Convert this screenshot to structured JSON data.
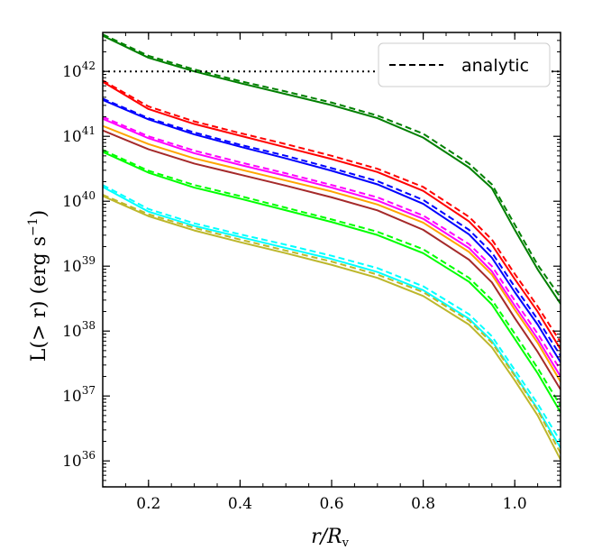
{
  "chart_data": {
    "type": "line",
    "title": "",
    "xlabel_main": "r/R",
    "xlabel_sub": "v",
    "ylabel_main": "L(> r) (erg s",
    "ylabel_sup": "−1",
    "ylabel_close": ")",
    "yscale": "log",
    "xlim": [
      0.1,
      1.1
    ],
    "ylim_exp": [
      35.6,
      42.6
    ],
    "grid": false,
    "legend_position": "top-right",
    "legend": [
      {
        "label": "analytic",
        "style": "dashed",
        "color": "#000000"
      }
    ],
    "x_ticks": [
      {
        "value": 0.2,
        "label": "0.2"
      },
      {
        "value": 0.4,
        "label": "0.4"
      },
      {
        "value": 0.6,
        "label": "0.6"
      },
      {
        "value": 0.8,
        "label": "0.8"
      },
      {
        "value": 1.0,
        "label": "1.0"
      }
    ],
    "y_ticks": [
      {
        "exp": 36,
        "base": "10",
        "sup": "36"
      },
      {
        "exp": 37,
        "base": "10",
        "sup": "37"
      },
      {
        "exp": 38,
        "base": "10",
        "sup": "38"
      },
      {
        "exp": 39,
        "base": "10",
        "sup": "39"
      },
      {
        "exp": 40,
        "base": "10",
        "sup": "40"
      },
      {
        "exp": 41,
        "base": "10",
        "sup": "41"
      },
      {
        "exp": 42,
        "base": "10",
        "sup": "42"
      }
    ],
    "hline": {
      "y_exp": 42.0,
      "style": "dotted",
      "color": "#000000"
    },
    "x": [
      0.1,
      0.2,
      0.3,
      0.4,
      0.5,
      0.6,
      0.7,
      0.8,
      0.9,
      0.95,
      1.0,
      1.05,
      1.1
    ],
    "series": [
      {
        "color": "#008000",
        "style": "solid",
        "log10_values": [
          42.55,
          42.21,
          42.0,
          41.82,
          41.65,
          41.48,
          41.28,
          40.98,
          40.52,
          40.2,
          39.56,
          38.95,
          38.42
        ]
      },
      {
        "color": "#008000",
        "style": "dashed",
        "log10_values": [
          42.57,
          42.24,
          42.03,
          41.85,
          41.69,
          41.52,
          41.32,
          41.04,
          40.58,
          40.26,
          39.64,
          39.02,
          38.52
        ]
      },
      {
        "color": "#ff0000",
        "style": "solid",
        "log10_values": [
          41.84,
          41.42,
          41.19,
          41.01,
          40.83,
          40.65,
          40.45,
          40.16,
          39.69,
          39.33,
          38.8,
          38.3,
          37.72
        ]
      },
      {
        "color": "#ff0000",
        "style": "dashed",
        "log10_values": [
          41.86,
          41.46,
          41.23,
          41.05,
          40.88,
          40.7,
          40.5,
          40.22,
          39.76,
          39.41,
          38.88,
          38.38,
          37.83
        ]
      },
      {
        "color": "#0000ff",
        "style": "solid",
        "log10_values": [
          41.56,
          41.26,
          41.03,
          40.84,
          40.66,
          40.47,
          40.26,
          39.96,
          39.49,
          39.13,
          38.6,
          38.1,
          37.52
        ]
      },
      {
        "color": "#0000ff",
        "style": "dashed",
        "log10_values": [
          41.58,
          41.28,
          41.06,
          40.87,
          40.7,
          40.51,
          40.31,
          40.02,
          39.56,
          39.21,
          38.68,
          38.18,
          37.62
        ]
      },
      {
        "color": "#ff00ff",
        "style": "solid",
        "log10_values": [
          41.27,
          40.97,
          40.74,
          40.56,
          40.39,
          40.21,
          40.01,
          39.73,
          39.28,
          38.92,
          38.39,
          37.88,
          37.3
        ]
      },
      {
        "color": "#ff00ff",
        "style": "dashed",
        "log10_values": [
          41.3,
          41.0,
          40.78,
          40.6,
          40.43,
          40.25,
          40.06,
          39.78,
          39.34,
          39.0,
          38.47,
          37.96,
          37.4
        ]
      },
      {
        "color": "#ffa500",
        "style": "solid",
        "log10_values": [
          41.16,
          40.88,
          40.66,
          40.49,
          40.32,
          40.15,
          39.95,
          39.67,
          39.22,
          38.87,
          38.33,
          37.82,
          37.22
        ]
      },
      {
        "color": "#a52a2a",
        "style": "solid",
        "log10_values": [
          41.09,
          40.8,
          40.58,
          40.41,
          40.24,
          40.06,
          39.86,
          39.56,
          39.1,
          38.75,
          38.2,
          37.68,
          37.1
        ]
      },
      {
        "color": "#00ff00",
        "style": "solid",
        "log10_values": [
          40.76,
          40.44,
          40.21,
          40.04,
          39.86,
          39.68,
          39.48,
          39.2,
          38.76,
          38.41,
          37.88,
          37.35,
          36.75
        ]
      },
      {
        "color": "#00ff00",
        "style": "dashed",
        "log10_values": [
          40.79,
          40.47,
          40.25,
          40.08,
          39.9,
          39.72,
          39.53,
          39.26,
          38.82,
          38.48,
          37.96,
          37.43,
          36.85
        ]
      },
      {
        "color": "#00ffff",
        "style": "solid",
        "log10_values": [
          40.22,
          39.84,
          39.62,
          39.45,
          39.28,
          39.11,
          38.91,
          38.63,
          38.19,
          37.85,
          37.33,
          36.8,
          36.2
        ]
      },
      {
        "color": "#00ffff",
        "style": "dashed",
        "log10_values": [
          40.25,
          39.88,
          39.66,
          39.49,
          39.33,
          39.16,
          38.97,
          38.69,
          38.26,
          37.92,
          37.4,
          36.88,
          36.3
        ]
      },
      {
        "color": "#bdb72b",
        "style": "solid",
        "log10_values": [
          40.08,
          39.77,
          39.55,
          39.37,
          39.2,
          39.02,
          38.82,
          38.54,
          38.1,
          37.75,
          37.24,
          36.7,
          36.02
        ]
      },
      {
        "color": "#bdb72b",
        "style": "dashed",
        "log10_values": [
          40.1,
          39.8,
          39.59,
          39.41,
          39.24,
          39.07,
          38.87,
          38.6,
          38.16,
          37.82,
          37.31,
          36.78,
          36.12
        ]
      }
    ]
  }
}
